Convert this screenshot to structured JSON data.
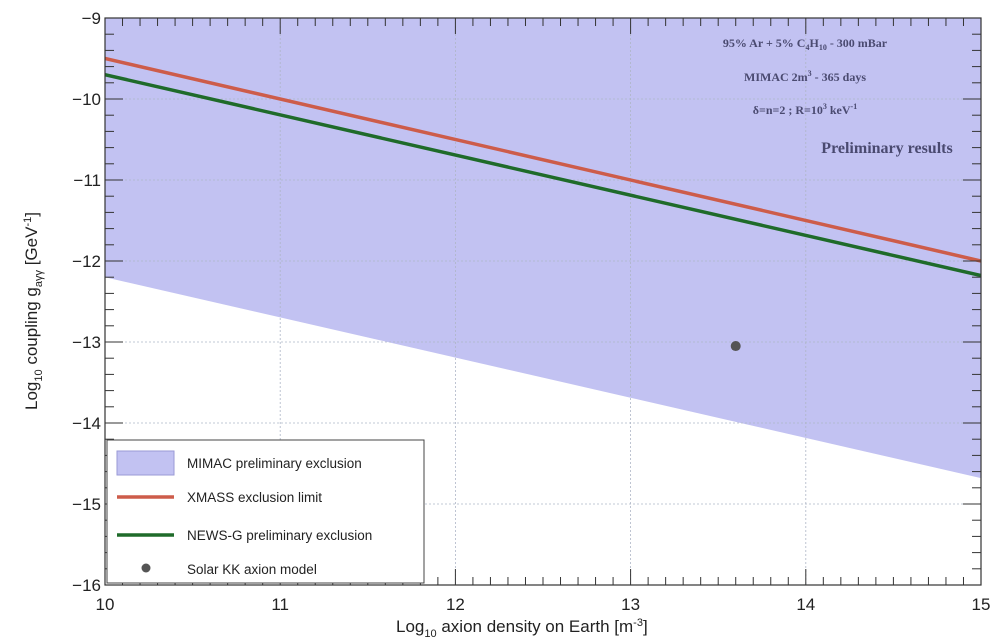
{
  "chart_data": {
    "type": "line",
    "xlabel": {
      "pre": "Log",
      "sub": "10",
      "main": " axion density on Earth [m",
      "sup": "-3",
      "post": "]"
    },
    "ylabel": {
      "pre": "Log",
      "sub1": "10",
      "mid": " coupling g",
      "sub2": "aγγ",
      "post1": " [GeV",
      "sup": "-1",
      "post2": "]"
    },
    "xlim": [
      10,
      15
    ],
    "ylim": [
      -16,
      -9
    ],
    "x_ticks": [
      10,
      11,
      12,
      13,
      14,
      15
    ],
    "y_ticks": [
      -9,
      -10,
      -11,
      -12,
      -13,
      -14,
      -15,
      -16
    ],
    "x_tick_labels": [
      "10",
      "11",
      "12",
      "13",
      "14",
      "15"
    ],
    "y_tick_labels": [
      "−9",
      "−10",
      "−11",
      "−12",
      "−13",
      "−14",
      "−15",
      "−16"
    ],
    "grid": true,
    "series": [
      {
        "name": "MIMAC preliminary exclusion",
        "kind": "area",
        "color": "#c2c2f2",
        "x": [
          10,
          15
        ],
        "y_lower": [
          -12.2,
          -14.68
        ],
        "y_upper": [
          -9,
          -9
        ]
      },
      {
        "name": "XMASS exclusion limit",
        "kind": "line",
        "color": "#cd5c4a",
        "x": [
          10,
          15
        ],
        "y": [
          -9.5,
          -12.0
        ]
      },
      {
        "name": "NEWS-G preliminary exclusion",
        "kind": "line",
        "color": "#1f6b2a",
        "x": [
          10,
          15
        ],
        "y": [
          -9.7,
          -12.18
        ]
      },
      {
        "name": "Solar KK axion model",
        "kind": "point",
        "color": "#555555",
        "x": [
          13.6
        ],
        "y": [
          -13.05
        ]
      }
    ],
    "annotations": {
      "gas": {
        "a": "95% Ar + 5% C",
        "sub1": "4",
        "b": "H",
        "sub2": "10",
        "c": " - 300 mBar"
      },
      "detector": {
        "a": "MIMAC 2m",
        "sup": "3",
        "b": " - 365 days"
      },
      "model": {
        "a": "δ=n=2 ; R=10",
        "sup1": "3",
        "b": " keV",
        "sup2": "-1"
      },
      "status": "Preliminary results"
    },
    "legend_position": "bottom-left"
  }
}
